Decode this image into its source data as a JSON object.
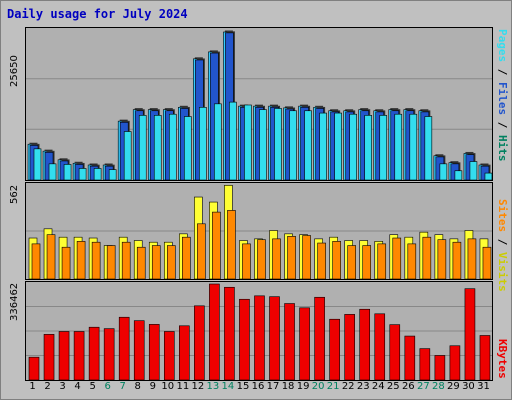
{
  "title": "Daily usage for July 2024",
  "colors": {
    "hits": "#33ccff",
    "files": "#2255cc",
    "pages": "#33ddee",
    "visits": "#ffff33",
    "sites": "#ff8800",
    "kbytes": "#ee0000",
    "weekend": "#00805f",
    "weekday": "#000000"
  },
  "legend": {
    "top": {
      "pages": "Pages",
      "sep1": " / ",
      "files": "Files",
      "sep2": " / ",
      "hits": "Hits"
    },
    "mid": {
      "sites": "Sites",
      "sep": " / ",
      "visits": "Visits"
    },
    "bottom": {
      "kbytes": "KBytes"
    }
  },
  "axis_labels": {
    "hits_max": "25650",
    "visits_max": "562",
    "kbytes_max": "336462"
  },
  "chart_data": {
    "type": "bar",
    "x": [
      1,
      2,
      3,
      4,
      5,
      6,
      7,
      8,
      9,
      10,
      11,
      12,
      13,
      14,
      15,
      16,
      17,
      18,
      19,
      20,
      21,
      22,
      23,
      24,
      25,
      26,
      27,
      28,
      29,
      30,
      31
    ],
    "weekend_days": [
      6,
      7,
      13,
      14,
      20,
      21,
      27,
      28
    ],
    "series": [
      {
        "name": "Hits",
        "values": [
          6200,
          5000,
          3500,
          2900,
          2600,
          2600,
          10200,
          12200,
          12200,
          12200,
          12600,
          21000,
          22200,
          25650,
          12800,
          12800,
          12800,
          12500,
          12800,
          12600,
          12000,
          12000,
          12200,
          12000,
          12200,
          12200,
          12000,
          4200,
          3000,
          4600,
          2600
        ]
      },
      {
        "name": "Files",
        "values": [
          6000,
          4800,
          3300,
          2700,
          2400,
          2400,
          10000,
          12000,
          12000,
          12000,
          12400,
          20800,
          22000,
          25500,
          12600,
          12600,
          12600,
          12300,
          12600,
          12400,
          11800,
          11800,
          12000,
          11800,
          12000,
          12000,
          11800,
          4000,
          2800,
          4400,
          2400
        ]
      },
      {
        "name": "Pages",
        "values": [
          5400,
          2800,
          2700,
          2000,
          2000,
          1800,
          8400,
          11200,
          11200,
          11400,
          11000,
          12600,
          13200,
          13500,
          13000,
          12200,
          12400,
          12000,
          12000,
          11600,
          11600,
          11400,
          11200,
          11200,
          11400,
          11400,
          11000,
          2800,
          1600,
          3200,
          1200
        ]
      },
      {
        "name": "Visits",
        "values": [
          245,
          300,
          250,
          250,
          245,
          200,
          250,
          230,
          220,
          220,
          270,
          490,
          460,
          560,
          230,
          240,
          290,
          270,
          265,
          240,
          250,
          230,
          230,
          225,
          265,
          250,
          280,
          265,
          240,
          290,
          240
        ]
      },
      {
        "name": "Sites",
        "values": [
          210,
          265,
          190,
          225,
          220,
          200,
          220,
          190,
          200,
          200,
          250,
          330,
          400,
          410,
          210,
          235,
          240,
          255,
          260,
          215,
          225,
          200,
          200,
          210,
          245,
          210,
          250,
          235,
          220,
          240,
          190
        ]
      },
      {
        "name": "KBytes",
        "values": [
          80000,
          160000,
          170000,
          170000,
          185000,
          180000,
          220000,
          208000,
          195000,
          170000,
          190000,
          260000,
          336462,
          325000,
          283000,
          295000,
          292000,
          268000,
          253000,
          290000,
          213000,
          230000,
          248000,
          232000,
          194000,
          154000,
          110000,
          86000,
          120000,
          320000,
          156000
        ]
      }
    ],
    "ylim_top": [
      0,
      25650
    ],
    "ylim_mid": [
      0,
      562
    ],
    "ylim_bottom": [
      0,
      336462
    ]
  }
}
